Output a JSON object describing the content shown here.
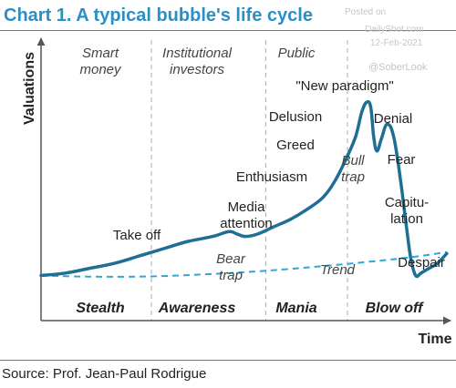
{
  "header": {
    "title": "Chart 1. A typical bubble's life cycle"
  },
  "watermark": {
    "line1": "Posted on",
    "line2": "DailyShot.com",
    "line3": "12-Feb-2021",
    "line4": "@SoberLook"
  },
  "footer": {
    "source": "Source: Prof. Jean-Paul Rodrigue"
  },
  "colors": {
    "accent": "#2a8fc4",
    "curve": "#1f6f95",
    "trend": "#2ea7d8",
    "divider": "#b8b8b8"
  },
  "chart_data": {
    "type": "line",
    "title": "Chart 1. A typical bubble's life cycle",
    "xlabel": "Time",
    "ylabel": "Valuations",
    "xlim": [
      0,
      100
    ],
    "ylim": [
      0,
      100
    ],
    "grid": false,
    "series": [
      {
        "key": "valuation",
        "values": [
          [
            0,
            11
          ],
          [
            6,
            12
          ],
          [
            12,
            14
          ],
          [
            18,
            16
          ],
          [
            24,
            19
          ],
          [
            30,
            22
          ],
          [
            36,
            25
          ],
          [
            42,
            27
          ],
          [
            46,
            29
          ],
          [
            48,
            28
          ],
          [
            50,
            27
          ],
          [
            53,
            28
          ],
          [
            57,
            31
          ],
          [
            61,
            34
          ],
          [
            65,
            38
          ],
          [
            69,
            43
          ],
          [
            72,
            50
          ],
          [
            75,
            60
          ],
          [
            77,
            68
          ],
          [
            78.5,
            78
          ],
          [
            79.7,
            82
          ],
          [
            80.7,
            80
          ],
          [
            81.4,
            68
          ],
          [
            82.2,
            62
          ],
          [
            83.3,
            67
          ],
          [
            84.7,
            73
          ],
          [
            86.3,
            68
          ],
          [
            88,
            50
          ],
          [
            89.5,
            30
          ],
          [
            90.5,
            18
          ],
          [
            91.7,
            11
          ],
          [
            93,
            12
          ],
          [
            95,
            14
          ],
          [
            97,
            16
          ],
          [
            99.3,
            20
          ]
        ]
      },
      {
        "name": "Trend",
        "values": [
          [
            0,
            11
          ],
          [
            10,
            10.6
          ],
          [
            20,
            10.5
          ],
          [
            30,
            10.8
          ],
          [
            40,
            11.5
          ],
          [
            50,
            12.4
          ],
          [
            60,
            13.6
          ],
          [
            70,
            15
          ],
          [
            80,
            16.6
          ],
          [
            90,
            18.4
          ],
          [
            99.3,
            20.6
          ]
        ]
      }
    ],
    "phases": [
      {
        "label": "Stealth",
        "investors": "Smart money"
      },
      {
        "label": "Awareness",
        "investors": "Institutional investors"
      },
      {
        "label": "Mania",
        "investors": "Public"
      },
      {
        "label": "Blow off",
        "investors": ""
      }
    ],
    "phase_boundaries": [
      27,
      55,
      75
    ],
    "annotations": [
      "\"New paradigm\"",
      "Delusion",
      "Greed",
      "Enthusiasm",
      "Media attention",
      "Take off",
      "Bear trap",
      "Bull trap",
      "Denial",
      "Fear",
      "Capitu-lation",
      "Despair",
      "Trend"
    ]
  }
}
